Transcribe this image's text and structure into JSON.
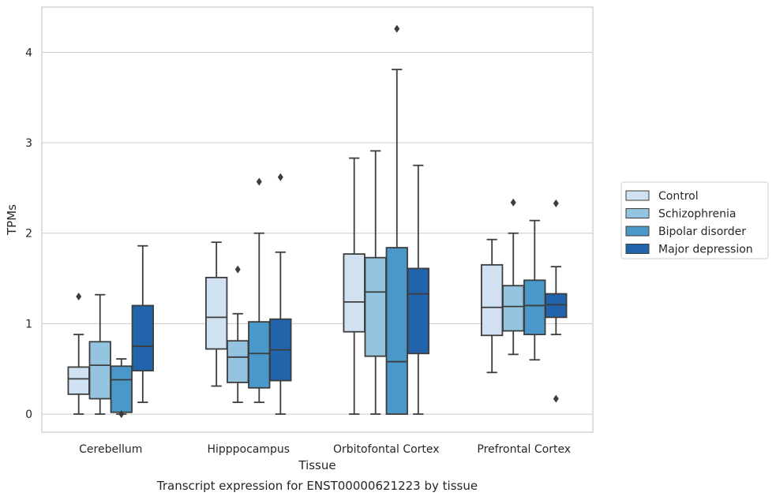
{
  "chart_data": {
    "type": "box",
    "title": "",
    "caption": "Transcript expression for ENST00000621223 by tissue",
    "xlabel": "Tissue",
    "ylabel": "TPMs",
    "ylim": [
      -0.2,
      4.5
    ],
    "yticks": [
      "0",
      "1",
      "2",
      "3",
      "4"
    ],
    "grid": true,
    "legend_position": "right",
    "categories": [
      "Cerebellum",
      "Hipppocampus",
      "Orbitofontal Cortex",
      "Prefrontal Cortex"
    ],
    "series": [
      {
        "name": "Control",
        "color": "#d0e1f2",
        "boxes": [
          {
            "whislo": 0.0,
            "q1": 0.22,
            "med": 0.39,
            "q3": 0.52,
            "whishi": 0.88,
            "fliers": [
              1.3
            ]
          },
          {
            "whislo": 0.31,
            "q1": 0.72,
            "med": 1.07,
            "q3": 1.51,
            "whishi": 1.9,
            "fliers": []
          },
          {
            "whislo": 0.0,
            "q1": 0.91,
            "med": 1.24,
            "q3": 1.77,
            "whishi": 2.83,
            "fliers": []
          },
          {
            "whislo": 0.46,
            "q1": 0.87,
            "med": 1.18,
            "q3": 1.65,
            "whishi": 1.93,
            "fliers": []
          }
        ]
      },
      {
        "name": "Schizophrenia",
        "color": "#94c4df",
        "boxes": [
          {
            "whislo": 0.0,
            "q1": 0.17,
            "med": 0.54,
            "q3": 0.8,
            "whishi": 1.32,
            "fliers": []
          },
          {
            "whislo": 0.13,
            "q1": 0.35,
            "med": 0.63,
            "q3": 0.81,
            "whishi": 1.11,
            "fliers": [
              1.6
            ]
          },
          {
            "whislo": 0.0,
            "q1": 0.64,
            "med": 1.35,
            "q3": 1.73,
            "whishi": 2.91,
            "fliers": []
          },
          {
            "whislo": 0.66,
            "q1": 0.92,
            "med": 1.19,
            "q3": 1.42,
            "whishi": 2.0,
            "fliers": [
              2.34
            ]
          }
        ]
      },
      {
        "name": "Bipolar disorder",
        "color": "#4a98c9",
        "boxes": [
          {
            "whislo": 0.0,
            "q1": 0.02,
            "med": 0.38,
            "q3": 0.53,
            "whishi": 0.61,
            "fliers": [
              0.0
            ]
          },
          {
            "whislo": 0.13,
            "q1": 0.29,
            "med": 0.67,
            "q3": 1.02,
            "whishi": 2.0,
            "fliers": [
              2.57
            ]
          },
          {
            "whislo": 0.0,
            "q1": 0.0,
            "med": 0.58,
            "q3": 1.84,
            "whishi": 3.81,
            "fliers": [
              4.26
            ]
          },
          {
            "whislo": 0.6,
            "q1": 0.88,
            "med": 1.2,
            "q3": 1.48,
            "whishi": 2.14,
            "fliers": []
          }
        ]
      },
      {
        "name": "Major depression",
        "color": "#2164ab",
        "boxes": [
          {
            "whislo": 0.13,
            "q1": 0.48,
            "med": 0.75,
            "q3": 1.2,
            "whishi": 1.86,
            "fliers": []
          },
          {
            "whislo": 0.0,
            "q1": 0.37,
            "med": 0.71,
            "q3": 1.05,
            "whishi": 1.79,
            "fliers": [
              2.62
            ]
          },
          {
            "whislo": 0.0,
            "q1": 0.67,
            "med": 1.33,
            "q3": 1.61,
            "whishi": 2.75,
            "fliers": []
          },
          {
            "whislo": 0.88,
            "q1": 1.07,
            "med": 1.21,
            "q3": 1.33,
            "whishi": 1.63,
            "fliers": [
              2.33,
              0.17
            ]
          }
        ]
      }
    ]
  }
}
